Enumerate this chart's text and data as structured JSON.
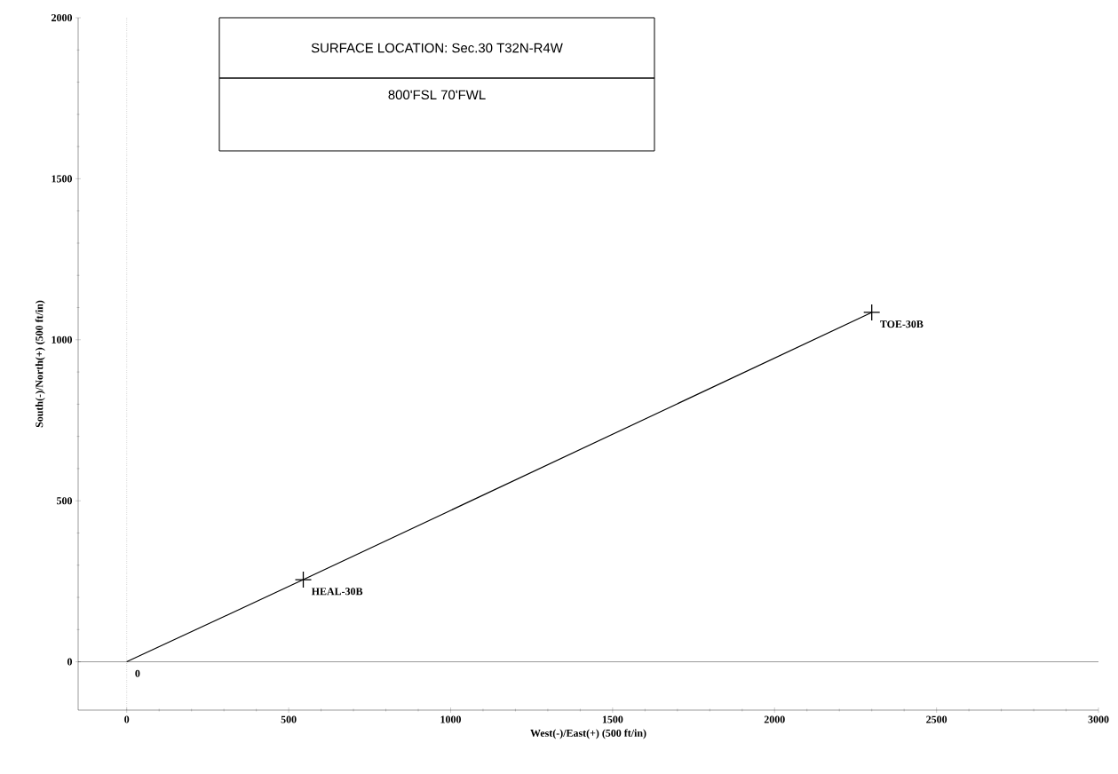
{
  "chart_data": {
    "type": "line",
    "xlabel": "West(-)/East(+) (500 ft/in)",
    "ylabel": "South(-)/North(+) (500 ft/in)",
    "xlim": [
      -150,
      3000
    ],
    "ylim": [
      -150,
      2000
    ],
    "xticks": [
      0,
      500,
      1000,
      1500,
      2000,
      2500,
      3000
    ],
    "yticks": [
      0,
      500,
      1000,
      1500,
      2000
    ],
    "grid": false,
    "series": [
      {
        "color": "#000000",
        "marker": "none",
        "x": [
          0,
          545,
          2300
        ],
        "values": [
          0,
          255,
          1085
        ]
      },
      {
        "type": "scatter",
        "color": "#000000",
        "marker": "cross",
        "x": [
          545,
          2300
        ],
        "values": [
          255,
          1085
        ]
      }
    ],
    "ref_lines": [
      {
        "axis": "y",
        "value": 0,
        "color": "#000000",
        "line_style": "solid"
      },
      {
        "axis": "x",
        "value": 0,
        "color": "#000000",
        "line_style": "dotted"
      }
    ],
    "annotations": [
      "SURFACE LOCATION:  Sec.30 T32N-R4W",
      "800'FSL  70'FWL",
      {
        "text": "0",
        "x": 0,
        "y": 0
      },
      {
        "text": "HEAL-30B",
        "x": 545,
        "y": 255
      },
      {
        "text": "TOE-30B",
        "x": 2300,
        "y": 1085
      }
    ]
  }
}
